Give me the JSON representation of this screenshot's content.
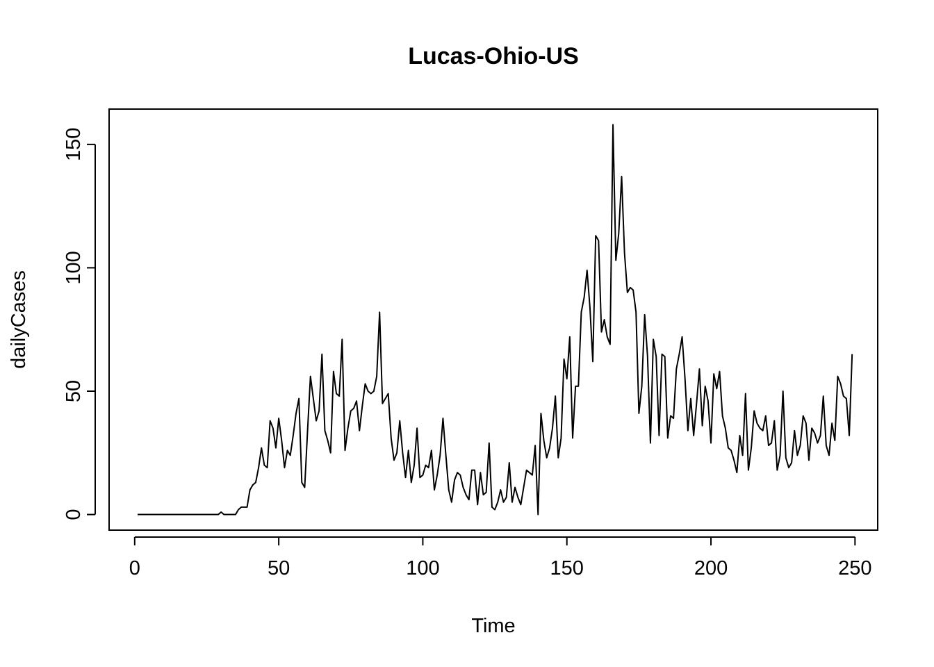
{
  "chart_data": {
    "type": "line",
    "title": "Lucas-Ohio-US",
    "xlabel": "Time",
    "ylabel": "dailyCases",
    "xlim": [
      1,
      248
    ],
    "ylim": [
      0,
      158
    ],
    "grid": false,
    "x_ticks": [
      0,
      50,
      100,
      150,
      200,
      250
    ],
    "y_ticks": [
      0,
      50,
      100,
      150
    ],
    "x_start": 1,
    "series": [
      {
        "values": [
          0,
          0,
          0,
          0,
          0,
          0,
          0,
          0,
          0,
          0,
          0,
          0,
          0,
          0,
          0,
          0,
          0,
          0,
          0,
          0,
          0,
          0,
          0,
          0,
          0,
          0,
          0,
          0,
          0,
          1,
          0,
          0,
          0,
          0,
          0,
          2,
          3,
          3,
          3,
          10,
          12,
          13,
          19,
          27,
          20,
          19,
          38,
          35,
          27,
          39,
          30,
          19,
          26,
          24,
          32,
          41,
          47,
          13,
          11,
          34,
          56,
          47,
          38,
          42,
          65,
          34,
          30,
          25,
          58,
          49,
          48,
          71,
          26,
          35,
          42,
          43,
          46,
          34,
          44,
          53,
          50,
          49,
          50,
          56,
          82,
          45,
          47,
          49,
          31,
          22,
          25,
          38,
          25,
          15,
          26,
          13,
          20,
          35,
          15,
          16,
          20,
          19,
          26,
          10,
          16,
          24,
          39,
          24,
          10,
          5,
          14,
          17,
          16,
          11,
          8,
          6,
          18,
          18,
          4,
          17,
          8,
          9,
          29,
          3,
          2,
          5,
          10,
          5,
          7,
          21,
          5,
          11,
          7,
          4,
          11,
          18,
          17,
          16,
          28,
          0,
          41,
          30,
          23,
          27,
          35,
          48,
          23,
          31,
          63,
          55,
          72,
          31,
          52,
          52,
          82,
          88,
          99,
          84,
          62,
          113,
          111,
          74,
          79,
          72,
          69,
          158,
          103,
          114,
          137,
          106,
          90,
          92,
          91,
          82,
          41,
          52,
          81,
          64,
          29,
          71,
          64,
          32,
          65,
          64,
          31,
          40,
          39,
          59,
          65,
          72,
          55,
          34,
          47,
          32,
          45,
          59,
          36,
          52,
          46,
          29,
          57,
          51,
          58,
          40,
          35,
          27,
          26,
          22,
          17,
          32,
          24,
          49,
          18,
          27,
          42,
          37,
          35,
          34,
          40,
          28,
          29,
          38,
          18,
          24,
          50,
          23,
          19,
          21,
          34,
          24,
          28,
          40,
          37,
          22,
          35,
          33,
          29,
          32,
          48,
          28,
          24,
          37,
          30,
          56,
          53,
          48,
          47,
          32,
          65
        ]
      }
    ]
  }
}
